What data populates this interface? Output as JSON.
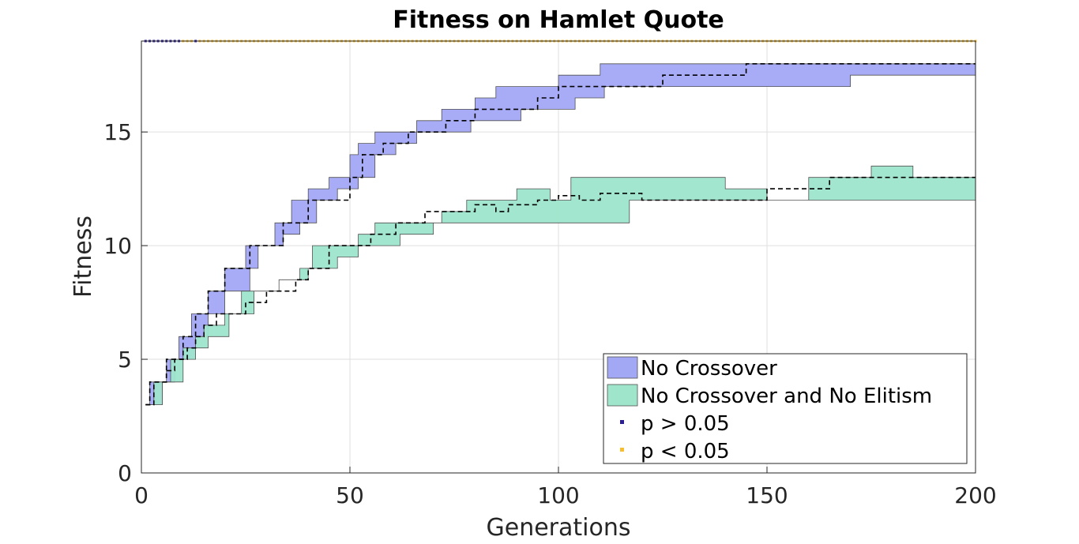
{
  "chart_data": {
    "type": "area",
    "title": "Fitness on Hamlet Quote",
    "xlabel": "Generations",
    "ylabel": "Fitness",
    "xlim": [
      0,
      200
    ],
    "ylim": [
      0,
      19
    ],
    "xticks": [
      0,
      50,
      100,
      150,
      200
    ],
    "yticks": [
      0,
      5,
      10,
      15
    ],
    "grid": true,
    "legend_position": "bottom-right",
    "series": [
      {
        "name": "No Crossover",
        "color": "#a3a8f5",
        "edge": "#505050",
        "median_x": [
          1,
          3,
          3,
          6,
          6,
          10,
          10,
          13,
          13,
          16,
          16,
          20,
          20,
          26,
          26,
          28,
          28,
          34,
          34,
          37,
          37,
          40,
          40,
          45,
          45,
          50,
          50,
          53,
          53,
          56,
          56,
          58,
          58,
          64,
          64,
          67,
          67,
          73,
          73,
          80,
          80,
          85,
          85,
          95,
          95,
          100,
          100,
          125,
          125,
          145,
          145,
          172,
          172,
          200
        ],
        "median_y": [
          3,
          3,
          4,
          4,
          5,
          5,
          6,
          6,
          7,
          7,
          8,
          8,
          9,
          9,
          10,
          10,
          10,
          10,
          11,
          11,
          11,
          11,
          12,
          12,
          12,
          12,
          13,
          13,
          14,
          14,
          14,
          14,
          14.5,
          14.5,
          15,
          15,
          15,
          15,
          15.5,
          15.5,
          16,
          16,
          16,
          16,
          16.5,
          16.5,
          17,
          17,
          17.5,
          17.5,
          18,
          18,
          18,
          18
        ],
        "upper_x": [
          1,
          2,
          2,
          6,
          6,
          9,
          9,
          12,
          12,
          16,
          16,
          20,
          20,
          25,
          25,
          28,
          28,
          32,
          32,
          36,
          36,
          40,
          40,
          45,
          45,
          50,
          50,
          52,
          52,
          56,
          56,
          59,
          59,
          66,
          66,
          72,
          72,
          80,
          80,
          85,
          85,
          100,
          100,
          110,
          110,
          150,
          150,
          172,
          172,
          200
        ],
        "upper_y": [
          3,
          3,
          4,
          4,
          5,
          5,
          6,
          6,
          7,
          7,
          8,
          8,
          9,
          9,
          10,
          10,
          10,
          10,
          11,
          11,
          12,
          12,
          12.5,
          12.5,
          13,
          13,
          14,
          14,
          14.5,
          14.5,
          15,
          15,
          15,
          15,
          15.5,
          15.5,
          16,
          16,
          16.5,
          16.5,
          17,
          17,
          17.5,
          17.5,
          18,
          18,
          18,
          18,
          18,
          18
        ],
        "lower_x": [
          1,
          5,
          5,
          8,
          8,
          13,
          13,
          16,
          16,
          20,
          20,
          26,
          26,
          28,
          28,
          34,
          34,
          38,
          38,
          42,
          42,
          47,
          47,
          52,
          52,
          56,
          56,
          61,
          61,
          66,
          66,
          73,
          73,
          79,
          79,
          91,
          91,
          104,
          104,
          111,
          111,
          170,
          170,
          200
        ],
        "lower_y": [
          3,
          3,
          4,
          4,
          5,
          5,
          6,
          6,
          7,
          7,
          8,
          8,
          9,
          9,
          10,
          10,
          10.5,
          10.5,
          11,
          11,
          12,
          12,
          12.5,
          12.5,
          13,
          13,
          14,
          14,
          14.5,
          14.5,
          15,
          15,
          15,
          15,
          15.5,
          15.5,
          16,
          16,
          16.5,
          16.5,
          17,
          17,
          17.5,
          17.5
        ]
      },
      {
        "name": "No Crossover and No Elitism",
        "color": "#9ee5cc",
        "edge": "#505050",
        "median_x": [
          1,
          2,
          2,
          6,
          6,
          8,
          8,
          11,
          11,
          13,
          13,
          15,
          15,
          18,
          18,
          21,
          21,
          25,
          25,
          30,
          30,
          33,
          33,
          37,
          37,
          40,
          40,
          45,
          45,
          50,
          50,
          55,
          55,
          61,
          61,
          65,
          65,
          68,
          68,
          80,
          80,
          85,
          85,
          88,
          88,
          95,
          95,
          100,
          100,
          105,
          105,
          110,
          110,
          120,
          120,
          125,
          125,
          135,
          135,
          150,
          150,
          165,
          165,
          170,
          170,
          200
        ],
        "median_y": [
          3,
          3,
          4,
          4,
          4.5,
          4.5,
          5,
          5,
          5.5,
          5.5,
          6,
          6,
          6.5,
          6.5,
          7,
          7,
          7,
          7,
          7.5,
          7.5,
          8,
          8,
          8,
          8,
          8.5,
          8.5,
          9,
          9,
          10,
          10,
          10,
          10,
          10.5,
          10.5,
          11,
          11,
          11,
          11,
          11.5,
          11.5,
          11.8,
          11.8,
          11.5,
          11.5,
          11.8,
          11.8,
          12,
          12,
          12.2,
          12.2,
          12,
          12,
          12.3,
          12.3,
          12,
          12,
          12,
          12,
          12,
          12,
          12.5,
          12.5,
          13,
          13,
          13,
          13
        ],
        "upper_x": [
          1,
          3,
          3,
          7,
          7,
          10,
          10,
          13,
          13,
          15,
          15,
          20,
          20,
          24,
          24,
          28,
          28,
          33,
          33,
          38,
          38,
          41,
          41,
          46,
          46,
          52,
          52,
          56,
          56,
          60,
          60,
          68,
          68,
          72,
          72,
          78,
          78,
          90,
          90,
          98,
          98,
          103,
          103,
          140,
          140,
          150,
          150,
          160,
          160,
          167,
          167,
          175,
          175,
          185,
          185,
          200
        ],
        "upper_y": [
          3,
          3,
          4,
          4,
          5,
          5,
          5.5,
          5.5,
          6,
          6,
          6.5,
          6.5,
          7,
          7,
          8,
          8,
          8,
          8,
          8.5,
          8.5,
          9,
          9,
          10,
          10,
          10,
          10,
          10.5,
          10.5,
          11,
          11,
          11,
          11,
          11,
          11,
          11.5,
          11.5,
          12,
          12,
          12.5,
          12.5,
          12,
          12,
          13,
          13,
          12.5,
          12.5,
          12,
          12,
          13,
          13,
          13,
          13,
          13.5,
          13.5,
          13,
          13
        ],
        "lower_x": [
          1,
          5,
          5,
          10,
          10,
          13,
          13,
          16,
          16,
          21,
          21,
          27,
          27,
          33,
          33,
          40,
          40,
          47,
          47,
          52,
          52,
          62,
          62,
          70,
          70,
          82,
          82,
          92,
          92,
          117,
          117,
          123,
          123,
          160,
          160,
          200
        ],
        "lower_y": [
          3,
          3,
          4,
          4,
          5,
          5,
          5.5,
          5.5,
          6,
          6,
          7,
          7,
          8,
          8,
          8.5,
          8.5,
          9,
          9,
          9.5,
          9.5,
          10,
          10,
          10.5,
          10.5,
          11,
          11,
          11,
          11,
          11,
          11,
          12,
          12,
          12,
          12,
          12,
          12
        ]
      }
    ],
    "significance_markers": [
      {
        "name": "p > 0.05",
        "color": "#2b1e94",
        "x_ranges": [
          [
            1,
            9
          ],
          [
            13,
            13
          ]
        ]
      },
      {
        "name": "p < 0.05",
        "color": "#f7bd2f",
        "x_ranges": [
          [
            10,
            12
          ],
          [
            14,
            200
          ]
        ]
      }
    ]
  }
}
